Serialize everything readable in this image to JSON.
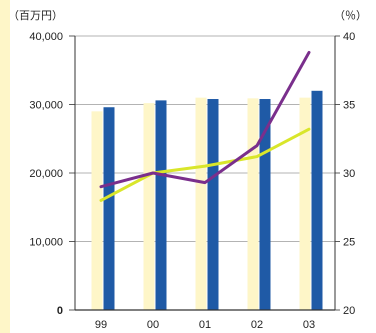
{
  "chart_data": {
    "type": "bar",
    "categories": [
      "99",
      "00",
      "01",
      "02",
      "03"
    ],
    "left_axis": {
      "unit_label": "（百万円）",
      "range": [
        0,
        40000
      ],
      "ticks": [
        "0",
        "10,000",
        "20,000",
        "30,000",
        "40,000"
      ]
    },
    "right_axis": {
      "unit_label": "（％）",
      "range": [
        20,
        40
      ],
      "ticks": [
        "20",
        "25",
        "30",
        "35",
        "40"
      ]
    },
    "series": [
      {
        "type": "bar",
        "axis": "left",
        "color": "#fef6c8",
        "values": [
          29000,
          30200,
          31000,
          30900,
          31000
        ]
      },
      {
        "type": "bar",
        "axis": "left",
        "color": "#1f5aa6",
        "values": [
          29600,
          30600,
          30800,
          30800,
          32000
        ]
      },
      {
        "type": "line",
        "axis": "right",
        "color": "#d9e62a",
        "values": [
          28.0,
          30.0,
          30.5,
          31.2,
          33.2
        ]
      },
      {
        "type": "line",
        "axis": "right",
        "color": "#7a2f8c",
        "values": [
          29.0,
          30.0,
          29.3,
          32.0,
          38.8
        ]
      }
    ],
    "grid": true
  }
}
